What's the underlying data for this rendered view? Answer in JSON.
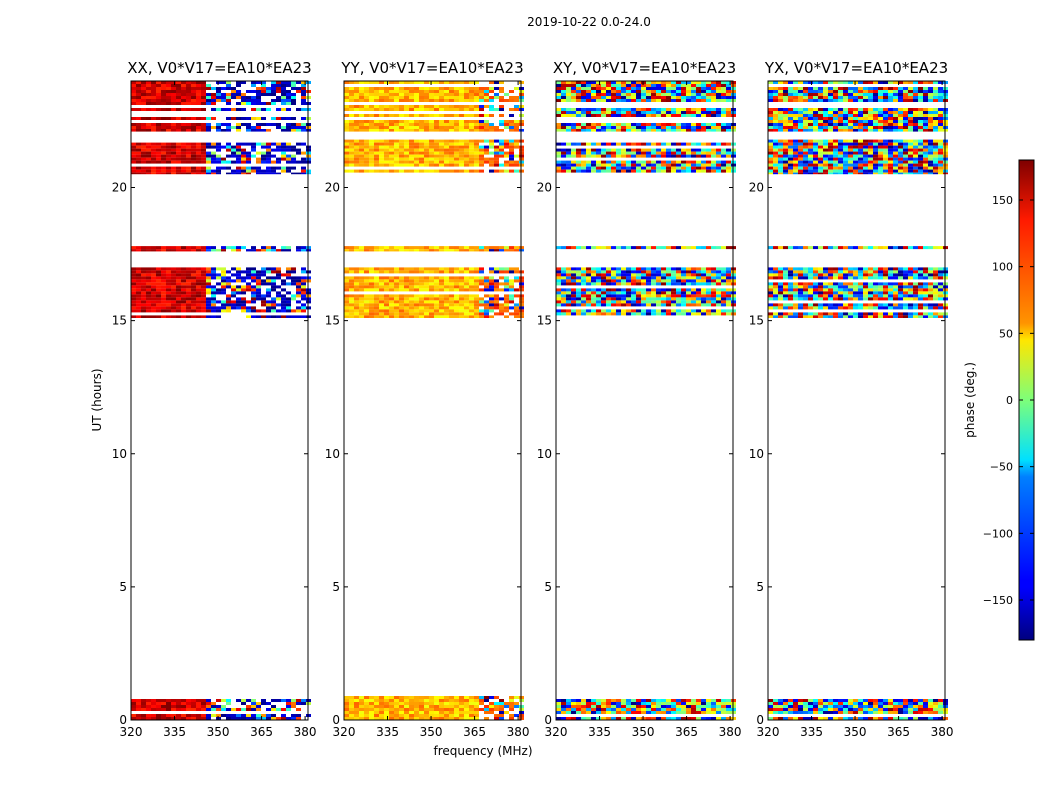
{
  "figure": {
    "suptitle": "2019-10-22 0.0-24.0"
  },
  "chart_data": {
    "type": "heatmap",
    "suptitle": "2019-10-22 0.0-24.0",
    "xlabel": "frequency (MHz)",
    "ylabel": "UT (hours)",
    "xlim": [
      320,
      381
    ],
    "ylim": [
      0,
      24
    ],
    "xticks": [
      320,
      335,
      350,
      365,
      380
    ],
    "yticks": [
      0,
      5,
      10,
      15,
      20
    ],
    "colorbar": {
      "label": "phase (deg.)",
      "range": [
        -180,
        180
      ],
      "ticks": [
        150,
        100,
        50,
        0,
        -50,
        -100,
        -150
      ],
      "tick_labels": [
        "150",
        "100",
        "50",
        "0",
        "−50",
        "−100",
        "−150"
      ],
      "colormap": "jet"
    },
    "data_time_ranges_hours": [
      [
        0.0,
        0.9
      ],
      [
        15.1,
        17.0
      ],
      [
        17.6,
        17.8
      ],
      [
        20.5,
        21.8
      ],
      [
        22.1,
        24.0
      ]
    ],
    "panels": [
      {
        "title": "XX, V0*V17=EA10*EA23",
        "phase_low_freq_deg": 150,
        "phase_high_freq_deg": -160,
        "transition_mhz": 345,
        "noisy": false
      },
      {
        "title": "YY, V0*V17=EA10*EA23",
        "phase_low_freq_deg": 70,
        "phase_high_freq_deg": 100,
        "transition_mhz": 365,
        "noisy": false
      },
      {
        "title": "XY, V0*V17=EA10*EA23",
        "phase_low_freq_deg": 0,
        "phase_high_freq_deg": 0,
        "transition_mhz": 365,
        "noisy": true
      },
      {
        "title": "YX, V0*V17=EA10*EA23",
        "phase_low_freq_deg": 0,
        "phase_high_freq_deg": 0,
        "transition_mhz": 365,
        "noisy": true
      }
    ]
  }
}
